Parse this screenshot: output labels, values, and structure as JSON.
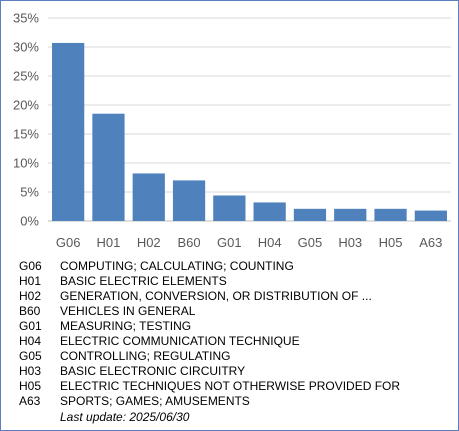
{
  "chart_data": {
    "type": "bar",
    "categories": [
      "G06",
      "H01",
      "H02",
      "B60",
      "G01",
      "H04",
      "G05",
      "H03",
      "H05",
      "A63"
    ],
    "values": [
      30.7,
      18.5,
      8.2,
      7.0,
      4.4,
      3.2,
      2.1,
      2.1,
      2.1,
      1.8
    ],
    "ylim": [
      0,
      35
    ],
    "yticks": [
      "0%",
      "5%",
      "10%",
      "15%",
      "20%",
      "25%",
      "30%",
      "35%"
    ],
    "ytick_values": [
      0,
      5,
      10,
      15,
      20,
      25,
      30,
      35
    ],
    "grid": true,
    "bar_color": "#4f81bd",
    "title": "",
    "xlabel": "",
    "ylabel": ""
  },
  "legend": [
    {
      "code": "G06",
      "desc": "COMPUTING; CALCULATING; COUNTING"
    },
    {
      "code": "H01",
      "desc": "BASIC ELECTRIC ELEMENTS"
    },
    {
      "code": "H02",
      "desc": "GENERATION, CONVERSION, OR DISTRIBUTION OF ..."
    },
    {
      "code": "B60",
      "desc": "VEHICLES IN GENERAL"
    },
    {
      "code": "G01",
      "desc": "MEASURING; TESTING"
    },
    {
      "code": "H04",
      "desc": "ELECTRIC COMMUNICATION TECHNIQUE"
    },
    {
      "code": "G05",
      "desc": "CONTROLLING; REGULATING"
    },
    {
      "code": "H03",
      "desc": "BASIC ELECTRONIC CIRCUITRY"
    },
    {
      "code": "H05",
      "desc": "ELECTRIC TECHNIQUES NOT OTHERWISE PROVIDED FOR"
    },
    {
      "code": "A63",
      "desc": "SPORTS; GAMES; AMUSEMENTS"
    }
  ],
  "last_update": "Last update:  2025/06/30"
}
